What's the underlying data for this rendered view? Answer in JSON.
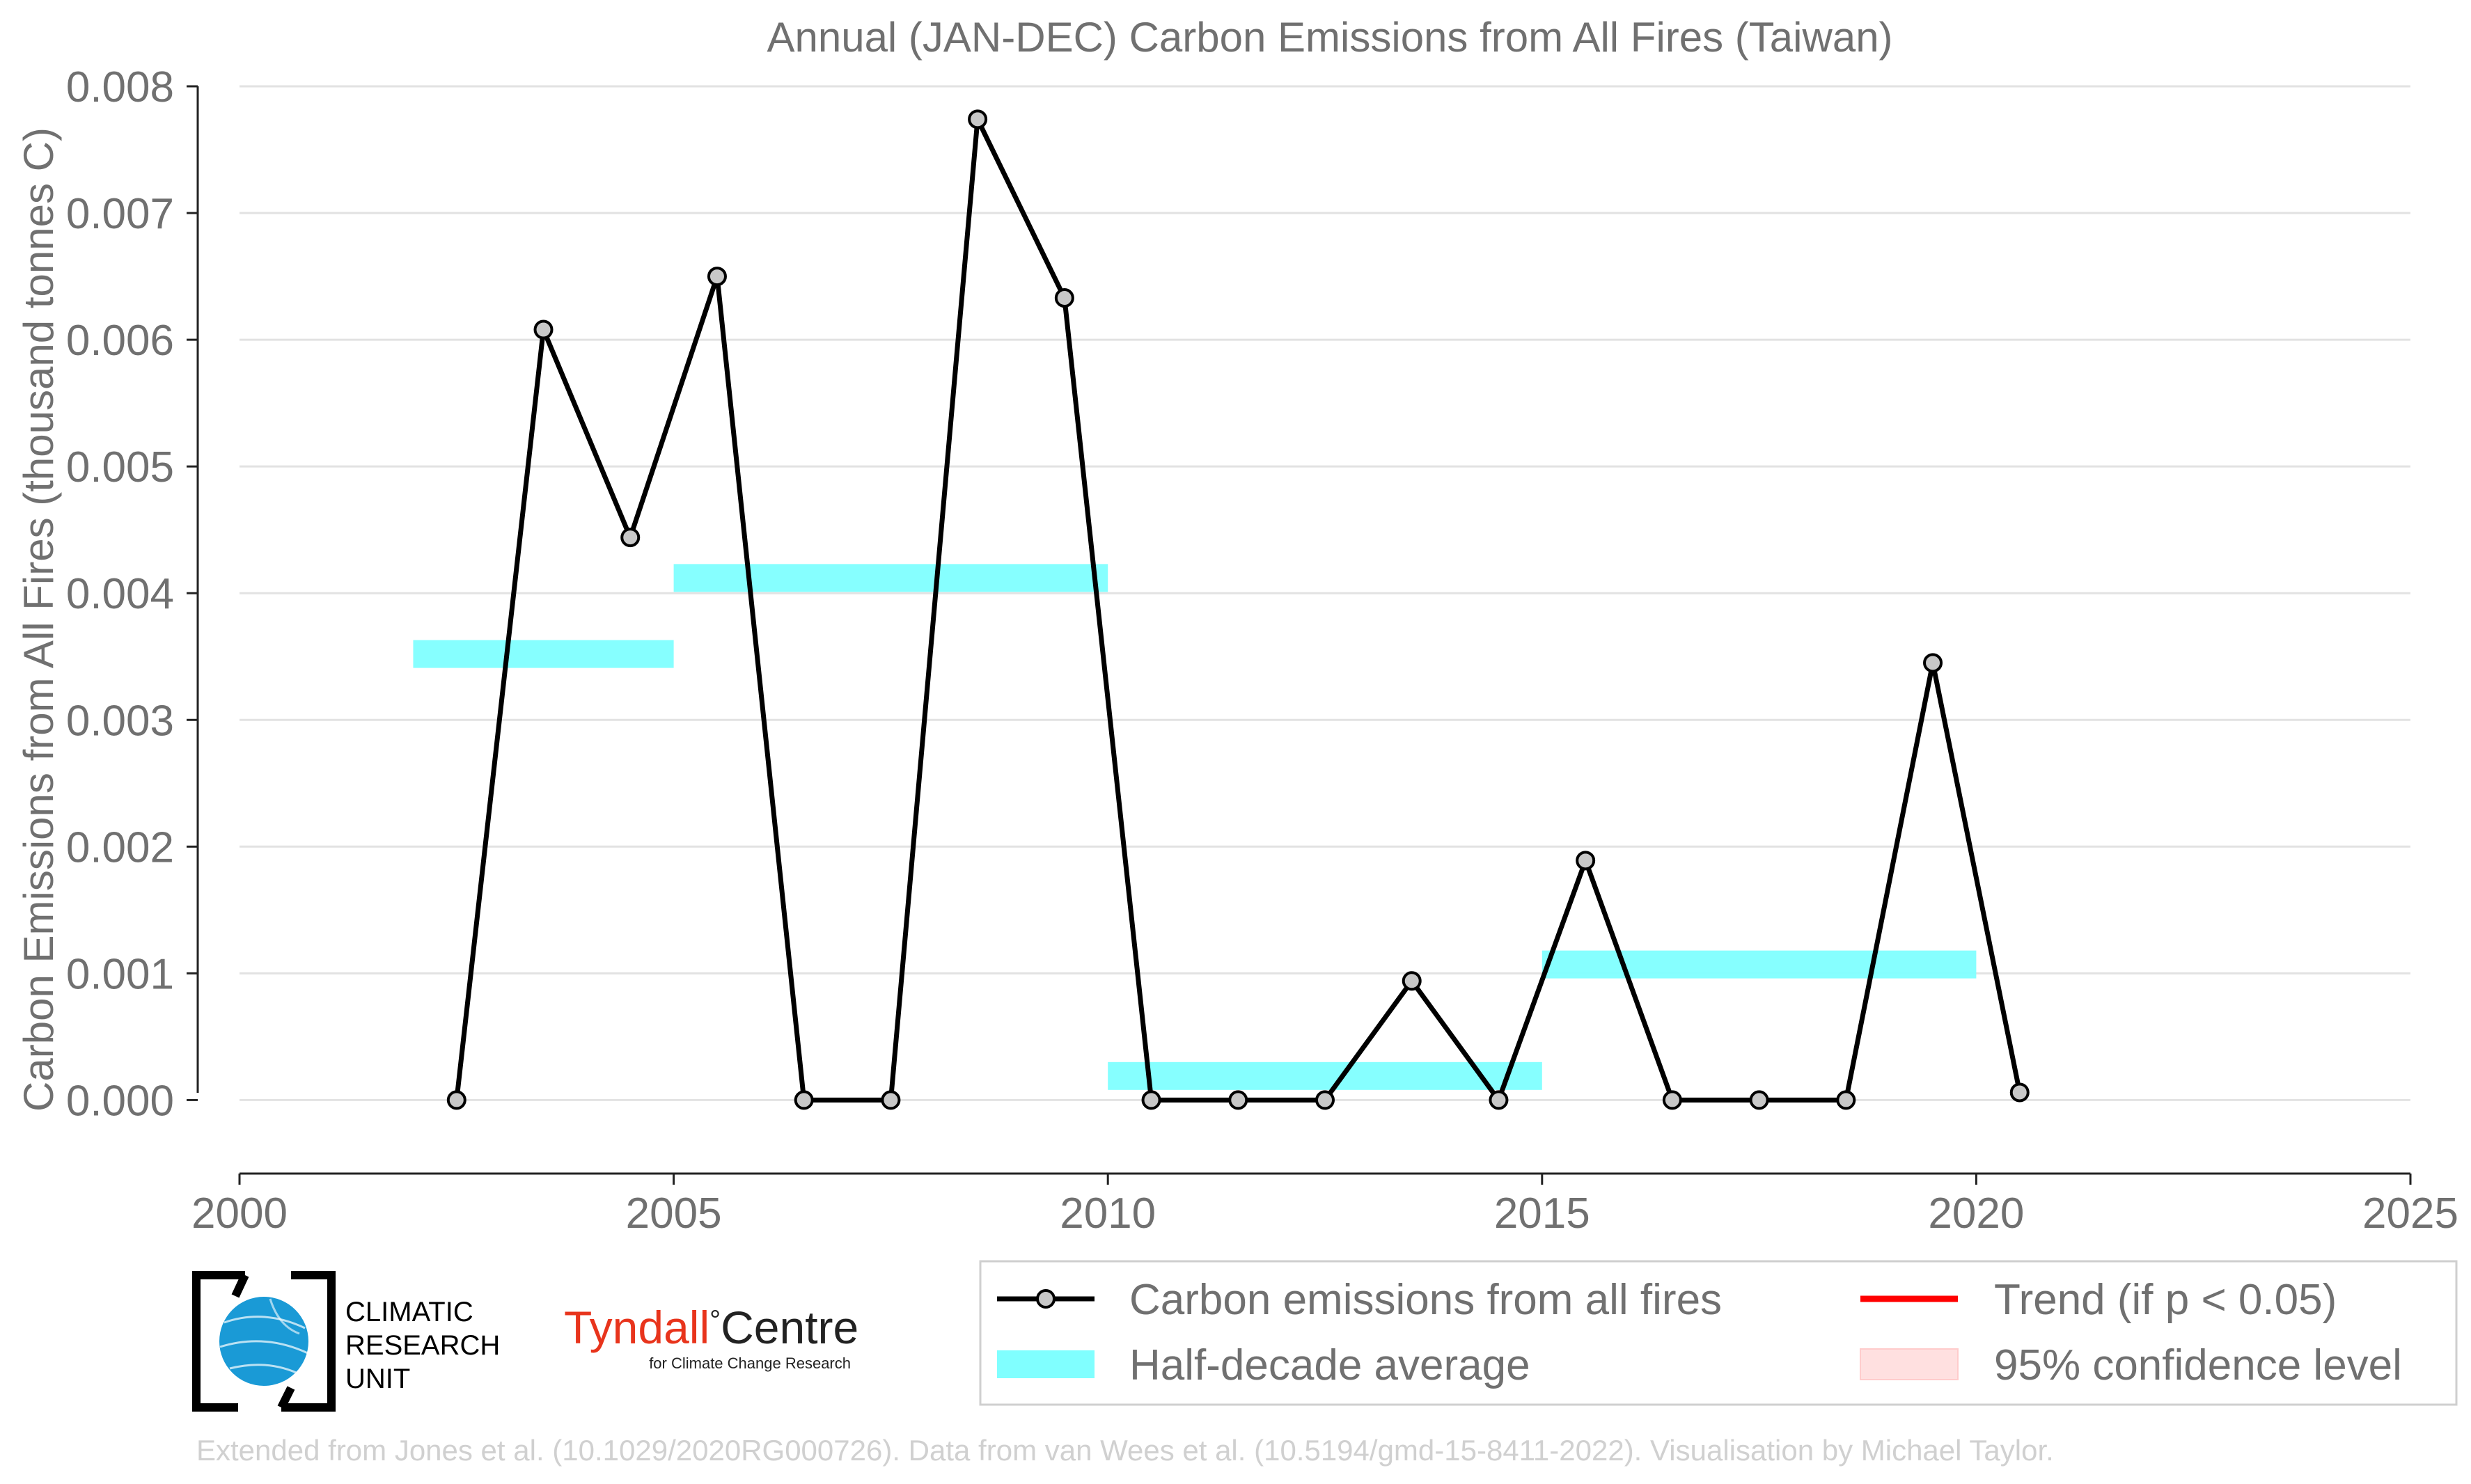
{
  "chart_data": {
    "type": "line",
    "title": "Annual (JAN-DEC) Carbon Emissions from All Fires (Taiwan)",
    "xlabel": "",
    "ylabel": "Carbon Emissions from All Fires (thousand tonnes C)",
    "xlim": [
      2000,
      2025
    ],
    "ylim": [
      -0.00058,
      0.008
    ],
    "x_ticks": [
      "2000",
      "2005",
      "2010",
      "2015",
      "2020",
      "2025"
    ],
    "y_ticks": [
      "0.000",
      "0.001",
      "0.002",
      "0.003",
      "0.004",
      "0.005",
      "0.006",
      "0.007",
      "0.008"
    ],
    "grid": "horizontal",
    "series": [
      {
        "name": "Carbon emissions from all fires",
        "color": "#000000",
        "marker_color": "#c8c8c8",
        "x": [
          2002.5,
          2003.5,
          2004.5,
          2005.5,
          2006.5,
          2007.5,
          2008.5,
          2009.5,
          2010.5,
          2011.5,
          2012.5,
          2013.5,
          2014.5,
          2015.5,
          2016.5,
          2017.5,
          2018.5,
          2019.5,
          2020.5
        ],
        "y": [
          0.0,
          0.00608,
          0.00444,
          0.0065,
          0.0,
          0.0,
          0.00774,
          0.00633,
          0.0,
          0.0,
          0.0,
          0.00094,
          0.0,
          0.00189,
          0.0,
          0.0,
          0.0,
          0.00345,
          6e-05
        ]
      }
    ],
    "half_decade_average": {
      "name": "Half-decade average",
      "color": "#80ffff",
      "segments": [
        {
          "x_start": 2002,
          "x_end": 2005,
          "value": 0.00352
        },
        {
          "x_start": 2005,
          "x_end": 2010,
          "value": 0.00412
        },
        {
          "x_start": 2010,
          "x_end": 2015,
          "value": 0.00019
        },
        {
          "x_start": 2015,
          "x_end": 2020,
          "value": 0.00107
        }
      ]
    },
    "legend": {
      "placement": "bottom-right",
      "items": [
        {
          "label": "Carbon emissions from all fires",
          "kind": "line-marker",
          "color": "#000000"
        },
        {
          "label": "Trend (if p < 0.05)",
          "kind": "line",
          "color": "#ff0000"
        },
        {
          "label": "Half-decade average",
          "kind": "patch",
          "color": "#80ffff"
        },
        {
          "label": "95% confidence level",
          "kind": "patch",
          "color": "#ffe0e0"
        }
      ]
    }
  },
  "logos": {
    "cru": {
      "line1": "CLIMATIC",
      "line2": "RESEARCH",
      "line3": "UNIT",
      "icon": "globe-icon"
    },
    "tyndall": {
      "name_red": "Tyndall",
      "name_dark": "Centre",
      "degree": "°",
      "subtitle": "for Climate Change Research",
      "color": "#e8341c"
    }
  },
  "footer": "Extended from Jones et al. (10.1029/2020RG000726). Data from van Wees et al. (10.5194/gmd-15-8411-2022). Visualisation by Michael Taylor."
}
